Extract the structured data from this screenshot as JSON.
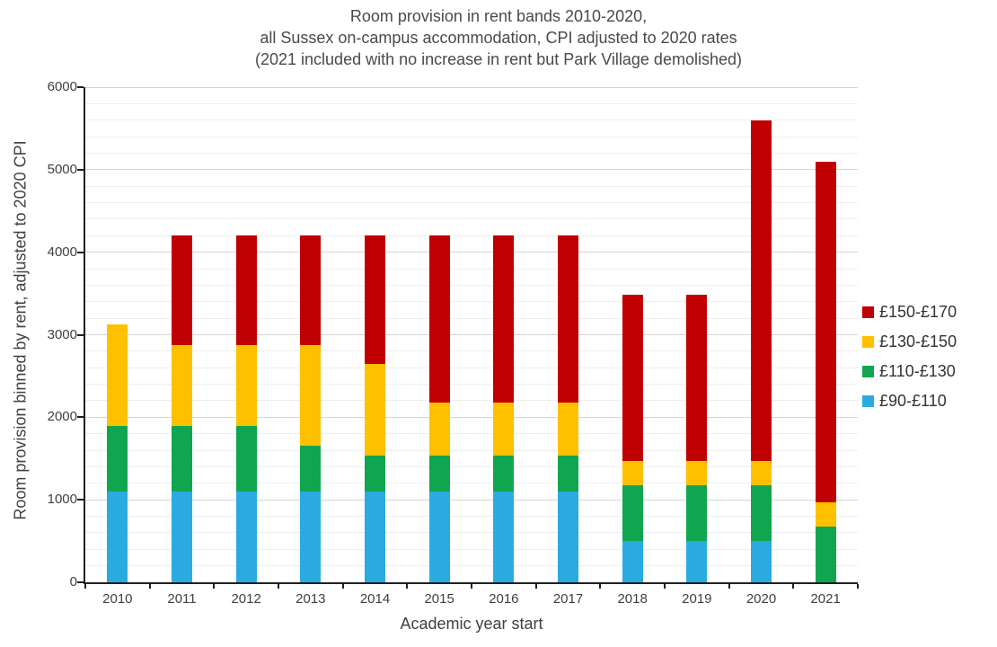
{
  "title": {
    "line1": "Room provision in rent bands 2010-2020,",
    "line2": "all Sussex on-campus accommodation, CPI adjusted to 2020 rates",
    "line3": "(2021 included with no increase in rent but Park Village demolished)"
  },
  "chart_data": {
    "type": "bar",
    "stacked": true,
    "title": "Room provision in rent bands 2010-2020, all Sussex on-campus accommodation, CPI adjusted to 2020 rates (2021 included with no increase in rent but Park Village demolished)",
    "xlabel": "Academic year start",
    "ylabel": "Room provision binned by rent, adjusted to 2020 CPI",
    "categories": [
      "2010",
      "2011",
      "2012",
      "2013",
      "2014",
      "2015",
      "2016",
      "2017",
      "2018",
      "2019",
      "2020",
      "2021"
    ],
    "series": [
      {
        "name": "£90-£110",
        "color": "#29ABE2",
        "values": [
          1100,
          1100,
          1100,
          1100,
          1100,
          1100,
          1100,
          1100,
          500,
          500,
          500,
          0
        ]
      },
      {
        "name": "£110-£130",
        "color": "#0FA64F",
        "values": [
          790,
          790,
          790,
          560,
          440,
          440,
          440,
          440,
          680,
          680,
          680,
          680
        ]
      },
      {
        "name": "£130-£150",
        "color": "#FFC000",
        "values": [
          1240,
          990,
          990,
          1220,
          1110,
          640,
          640,
          640,
          290,
          290,
          290,
          290
        ]
      },
      {
        "name": "£150-£170",
        "color": "#C00000",
        "values": [
          0,
          1320,
          1320,
          1320,
          1550,
          2020,
          2020,
          2020,
          2020,
          2020,
          4130,
          4130
        ]
      }
    ],
    "totals": [
      3130,
      4200,
      4200,
      4200,
      4200,
      4200,
      4200,
      4200,
      3490,
      3490,
      5600,
      5100
    ],
    "ylim": [
      0,
      6000
    ],
    "yticks": [
      0,
      1000,
      2000,
      3000,
      4000,
      5000,
      6000
    ],
    "minor_grid_step": 200,
    "grid": true,
    "legend_position": "right",
    "legend_order_top_to_bottom": [
      "£150-£170",
      "£130-£150",
      "£110-£130",
      "£90-£110"
    ]
  },
  "colors": {
    "axis": "#1F1F1F",
    "major_gridline": "#D5D5D5",
    "minor_gridline": "#EEEEEE",
    "text": "#404040",
    "background": "#FFFFFF"
  }
}
